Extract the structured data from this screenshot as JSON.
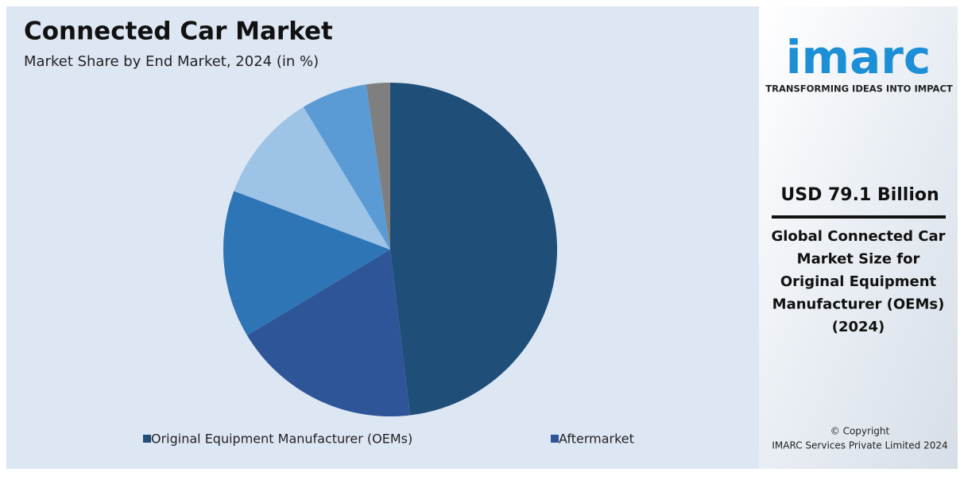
{
  "chart_data": {
    "type": "pie",
    "title": "Connected Car Market",
    "subtitle": "Market Share by End Market, 2024 (in %)",
    "categories": [
      "Original Equipment Manufacturer (OEMs)",
      "Aftermarket",
      null,
      null,
      null,
      null
    ],
    "values": [
      48.1,
      18.3,
      14.3,
      10.6,
      6.4,
      2.3
    ],
    "colors": [
      "#1f4e79",
      "#2e5597",
      "#2e75b6",
      "#9dc3e6",
      "#5b9bd5",
      "#7f7f7f"
    ]
  },
  "sidebar": {
    "logo": "imarc",
    "tagline": "TRANSFORMING IDEAS INTO IMPACT",
    "headline": "USD 79.1 Billion",
    "description": [
      "Global Connected Car",
      "Market Size for",
      "Original Equipment",
      "Manufacturer (OEMs)",
      "(2024)"
    ],
    "copyright": [
      "© Copyright",
      "IMARC Services Private Limited 2024"
    ]
  }
}
